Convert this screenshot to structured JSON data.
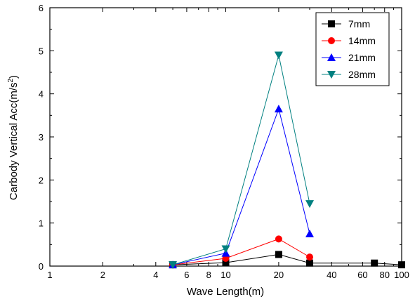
{
  "chart_data": {
    "type": "line",
    "xlabel": "Wave Length(m)",
    "ylabel_main": "Carbody Vertical Acc(m/s",
    "ylabel_sup": "2",
    "ylabel_close": ")",
    "x_scale": "log",
    "xlim": [
      1,
      100
    ],
    "ylim": [
      0,
      6
    ],
    "x_ticks": [
      1,
      2,
      4,
      6,
      8,
      10,
      20,
      40,
      60,
      80,
      100
    ],
    "x_tick_labels": [
      "1",
      "2",
      "4",
      "6",
      "8",
      "10",
      "20",
      "40",
      "60",
      "80",
      "100"
    ],
    "y_ticks": [
      0,
      1,
      2,
      3,
      4,
      5,
      6
    ],
    "y_tick_labels": [
      "0",
      "1",
      "2",
      "3",
      "4",
      "5",
      "6"
    ],
    "grid": false,
    "legend_position": "top-right",
    "series": [
      {
        "name": "7mm",
        "color": "#000000",
        "marker": "square",
        "points": [
          [
            5,
            0.03
          ],
          [
            10,
            0.08
          ],
          [
            20,
            0.27
          ],
          [
            30,
            0.07
          ],
          [
            70,
            0.07
          ],
          [
            100,
            0.03
          ]
        ]
      },
      {
        "name": "14mm",
        "color": "#ff0000",
        "marker": "circle",
        "points": [
          [
            5,
            0.03
          ],
          [
            10,
            0.18
          ],
          [
            20,
            0.63
          ],
          [
            30,
            0.21
          ]
        ]
      },
      {
        "name": "21mm",
        "color": "#0000ff",
        "marker": "triangle-up",
        "points": [
          [
            5,
            0.03
          ],
          [
            10,
            0.3
          ],
          [
            20,
            3.65
          ],
          [
            30,
            0.75
          ]
        ]
      },
      {
        "name": "28mm",
        "color": "#008080",
        "marker": "triangle-down",
        "points": [
          [
            5,
            0.03
          ],
          [
            10,
            0.4
          ],
          [
            20,
            4.9
          ],
          [
            30,
            1.45
          ]
        ]
      }
    ]
  }
}
